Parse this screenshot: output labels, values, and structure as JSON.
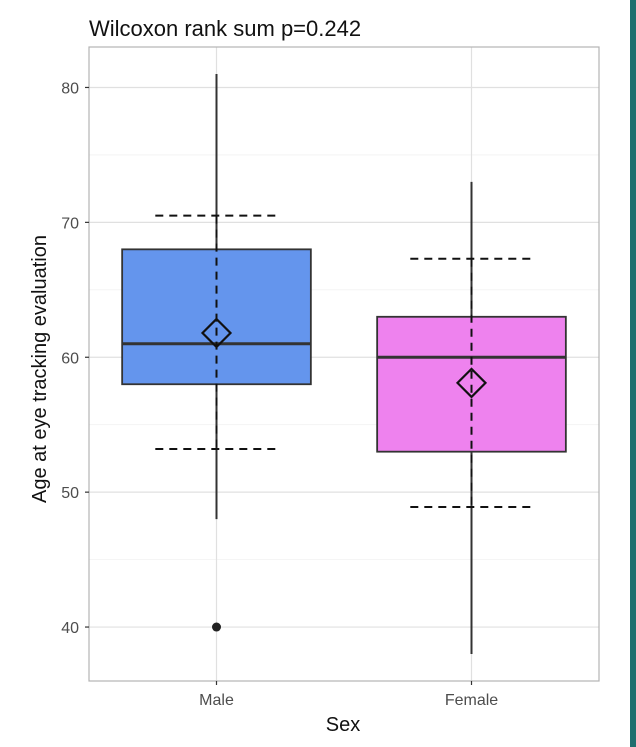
{
  "chart_data": {
    "type": "boxplot",
    "title": "Wilcoxon rank sum p=0.242",
    "xlabel": "Sex",
    "ylabel": "Age at eye tracking evaluation",
    "ylim": [
      36,
      83
    ],
    "yticks": [
      40,
      50,
      60,
      70,
      80
    ],
    "grid": true,
    "categories": [
      "Male",
      "Female"
    ],
    "series": [
      {
        "category": "Male",
        "color": "#6495ED",
        "whisker_low": 48,
        "q1": 58,
        "median": 61,
        "q3": 68,
        "whisker_high": 81,
        "mean": 61.8,
        "sd_low": 53.2,
        "sd_high": 70.5,
        "outliers": [
          40
        ]
      },
      {
        "category": "Female",
        "color": "#EE82EE",
        "whisker_low": 38,
        "q1": 53,
        "median": 60,
        "q3": 63,
        "whisker_high": 73,
        "mean": 58.1,
        "sd_low": 48.9,
        "sd_high": 67.3,
        "outliers": []
      }
    ]
  }
}
